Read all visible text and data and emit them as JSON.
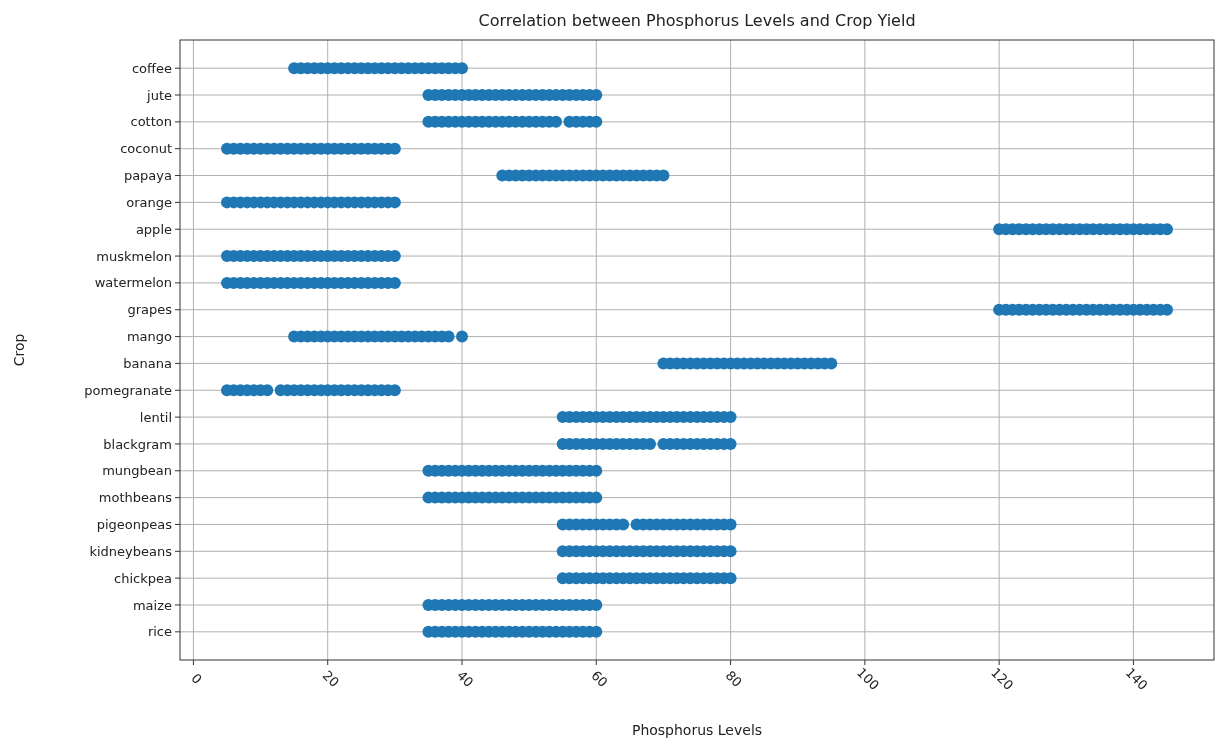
{
  "chart_data": {
    "type": "scatter",
    "orientation": "horizontal",
    "title": "Correlation between Phosphorus Levels and Crop Yield",
    "xlabel": "Phosphorus Levels",
    "ylabel": "Crop",
    "categories": [
      "coffee",
      "jute",
      "cotton",
      "coconut",
      "papaya",
      "orange",
      "apple",
      "muskmelon",
      "watermelon",
      "grapes",
      "mango",
      "banana",
      "pomegranate",
      "lentil",
      "blackgram",
      "mungbean",
      "mothbeans",
      "pigeonpeas",
      "kidneybeans",
      "chickpea",
      "maize",
      "rice"
    ],
    "xlim": [
      -2,
      152
    ],
    "xticks": [
      0,
      20,
      40,
      60,
      80,
      100,
      120,
      140
    ],
    "grid": true,
    "marker": "circle",
    "series": [
      {
        "color": "#1f77b4",
        "x": [
          "coffee",
          "coffee",
          "coffee",
          "coffee",
          "coffee",
          "coffee",
          "coffee",
          "coffee",
          "coffee",
          "coffee",
          "coffee",
          "coffee",
          "coffee",
          "coffee",
          "coffee",
          "coffee",
          "coffee",
          "coffee",
          "coffee",
          "coffee",
          "coffee",
          "coffee",
          "coffee",
          "coffee",
          "coffee",
          "coffee"
        ],
        "values": [
          15,
          16,
          17,
          18,
          19,
          20,
          21,
          22,
          23,
          24,
          25,
          26,
          27,
          28,
          29,
          30,
          31,
          32,
          33,
          34,
          35,
          36,
          37,
          38,
          39,
          40
        ]
      },
      {
        "color": "#1f77b4",
        "x": [
          "jute",
          "jute",
          "jute",
          "jute",
          "jute",
          "jute",
          "jute",
          "jute",
          "jute",
          "jute",
          "jute",
          "jute",
          "jute",
          "jute",
          "jute",
          "jute",
          "jute",
          "jute",
          "jute",
          "jute",
          "jute",
          "jute",
          "jute",
          "jute",
          "jute",
          "jute"
        ],
        "values": [
          35,
          36,
          37,
          38,
          39,
          40,
          41,
          42,
          43,
          44,
          45,
          46,
          47,
          48,
          49,
          50,
          51,
          52,
          53,
          54,
          55,
          56,
          57,
          58,
          59,
          60
        ]
      },
      {
        "color": "#1f77b4",
        "x": [
          "cotton",
          "cotton",
          "cotton",
          "cotton",
          "cotton",
          "cotton",
          "cotton",
          "cotton",
          "cotton",
          "cotton",
          "cotton",
          "cotton",
          "cotton",
          "cotton",
          "cotton",
          "cotton",
          "cotton",
          "cotton",
          "cotton",
          "cotton",
          "cotton",
          "cotton",
          "cotton",
          "cotton",
          "cotton"
        ],
        "values": [
          35,
          36,
          37,
          38,
          39,
          40,
          41,
          42,
          43,
          44,
          45,
          46,
          47,
          48,
          49,
          50,
          51,
          52,
          53,
          54,
          56,
          57,
          58,
          59,
          60
        ]
      },
      {
        "color": "#1f77b4",
        "x": [
          "coconut",
          "coconut",
          "coconut",
          "coconut",
          "coconut",
          "coconut",
          "coconut",
          "coconut",
          "coconut",
          "coconut",
          "coconut",
          "coconut",
          "coconut",
          "coconut",
          "coconut",
          "coconut",
          "coconut",
          "coconut",
          "coconut",
          "coconut",
          "coconut",
          "coconut",
          "coconut",
          "coconut",
          "coconut",
          "coconut"
        ],
        "values": [
          5,
          6,
          7,
          8,
          9,
          10,
          11,
          12,
          13,
          14,
          15,
          16,
          17,
          18,
          19,
          20,
          21,
          22,
          23,
          24,
          25,
          26,
          27,
          28,
          29,
          30
        ]
      },
      {
        "color": "#1f77b4",
        "x": [
          "papaya",
          "papaya",
          "papaya",
          "papaya",
          "papaya",
          "papaya",
          "papaya",
          "papaya",
          "papaya",
          "papaya",
          "papaya",
          "papaya",
          "papaya",
          "papaya",
          "papaya",
          "papaya",
          "papaya",
          "papaya",
          "papaya",
          "papaya",
          "papaya",
          "papaya",
          "papaya",
          "papaya",
          "papaya"
        ],
        "values": [
          46,
          47,
          48,
          49,
          50,
          51,
          52,
          53,
          54,
          55,
          56,
          57,
          58,
          59,
          60,
          61,
          62,
          63,
          64,
          65,
          66,
          67,
          68,
          69,
          70
        ]
      },
      {
        "color": "#1f77b4",
        "x": [
          "orange",
          "orange",
          "orange",
          "orange",
          "orange",
          "orange",
          "orange",
          "orange",
          "orange",
          "orange",
          "orange",
          "orange",
          "orange",
          "orange",
          "orange",
          "orange",
          "orange",
          "orange",
          "orange",
          "orange",
          "orange",
          "orange",
          "orange",
          "orange",
          "orange",
          "orange"
        ],
        "values": [
          5,
          6,
          7,
          8,
          9,
          10,
          11,
          12,
          13,
          14,
          15,
          16,
          17,
          18,
          19,
          20,
          21,
          22,
          23,
          24,
          25,
          26,
          27,
          28,
          29,
          30
        ]
      },
      {
        "color": "#1f77b4",
        "x": [
          "apple",
          "apple",
          "apple",
          "apple",
          "apple",
          "apple",
          "apple",
          "apple",
          "apple",
          "apple",
          "apple",
          "apple",
          "apple",
          "apple",
          "apple",
          "apple",
          "apple",
          "apple",
          "apple",
          "apple",
          "apple",
          "apple",
          "apple",
          "apple",
          "apple",
          "apple"
        ],
        "values": [
          120,
          121,
          122,
          123,
          124,
          125,
          126,
          127,
          128,
          129,
          130,
          131,
          132,
          133,
          134,
          135,
          136,
          137,
          138,
          139,
          140,
          141,
          142,
          143,
          144,
          145
        ]
      },
      {
        "color": "#1f77b4",
        "x": [
          "muskmelon",
          "muskmelon",
          "muskmelon",
          "muskmelon",
          "muskmelon",
          "muskmelon",
          "muskmelon",
          "muskmelon",
          "muskmelon",
          "muskmelon",
          "muskmelon",
          "muskmelon",
          "muskmelon",
          "muskmelon",
          "muskmelon",
          "muskmelon",
          "muskmelon",
          "muskmelon",
          "muskmelon",
          "muskmelon",
          "muskmelon",
          "muskmelon",
          "muskmelon",
          "muskmelon",
          "muskmelon",
          "muskmelon"
        ],
        "values": [
          5,
          6,
          7,
          8,
          9,
          10,
          11,
          12,
          13,
          14,
          15,
          16,
          17,
          18,
          19,
          20,
          21,
          22,
          23,
          24,
          25,
          26,
          27,
          28,
          29,
          30
        ]
      },
      {
        "color": "#1f77b4",
        "x": [
          "watermelon",
          "watermelon",
          "watermelon",
          "watermelon",
          "watermelon",
          "watermelon",
          "watermelon",
          "watermelon",
          "watermelon",
          "watermelon",
          "watermelon",
          "watermelon",
          "watermelon",
          "watermelon",
          "watermelon",
          "watermelon",
          "watermelon",
          "watermelon",
          "watermelon",
          "watermelon",
          "watermelon",
          "watermelon",
          "watermelon",
          "watermelon",
          "watermelon",
          "watermelon"
        ],
        "values": [
          5,
          6,
          7,
          8,
          9,
          10,
          11,
          12,
          13,
          14,
          15,
          16,
          17,
          18,
          19,
          20,
          21,
          22,
          23,
          24,
          25,
          26,
          27,
          28,
          29,
          30
        ]
      },
      {
        "color": "#1f77b4",
        "x": [
          "grapes",
          "grapes",
          "grapes",
          "grapes",
          "grapes",
          "grapes",
          "grapes",
          "grapes",
          "grapes",
          "grapes",
          "grapes",
          "grapes",
          "grapes",
          "grapes",
          "grapes",
          "grapes",
          "grapes",
          "grapes",
          "grapes",
          "grapes",
          "grapes",
          "grapes",
          "grapes",
          "grapes",
          "grapes",
          "grapes"
        ],
        "values": [
          120,
          121,
          122,
          123,
          124,
          125,
          126,
          127,
          128,
          129,
          130,
          131,
          132,
          133,
          134,
          135,
          136,
          137,
          138,
          139,
          140,
          141,
          142,
          143,
          144,
          145
        ]
      },
      {
        "color": "#1f77b4",
        "x": [
          "mango",
          "mango",
          "mango",
          "mango",
          "mango",
          "mango",
          "mango",
          "mango",
          "mango",
          "mango",
          "mango",
          "mango",
          "mango",
          "mango",
          "mango",
          "mango",
          "mango",
          "mango",
          "mango",
          "mango",
          "mango",
          "mango",
          "mango",
          "mango",
          "mango"
        ],
        "values": [
          15,
          16,
          17,
          18,
          19,
          20,
          21,
          22,
          23,
          24,
          25,
          26,
          27,
          28,
          29,
          30,
          31,
          32,
          33,
          34,
          35,
          36,
          37,
          38,
          40
        ]
      },
      {
        "color": "#1f77b4",
        "x": [
          "banana",
          "banana",
          "banana",
          "banana",
          "banana",
          "banana",
          "banana",
          "banana",
          "banana",
          "banana",
          "banana",
          "banana",
          "banana",
          "banana",
          "banana",
          "banana",
          "banana",
          "banana",
          "banana",
          "banana",
          "banana",
          "banana",
          "banana",
          "banana",
          "banana",
          "banana"
        ],
        "values": [
          70,
          71,
          72,
          73,
          74,
          75,
          76,
          77,
          78,
          79,
          80,
          81,
          82,
          83,
          84,
          85,
          86,
          87,
          88,
          89,
          90,
          91,
          92,
          93,
          94,
          95
        ]
      },
      {
        "color": "#1f77b4",
        "x": [
          "pomegranate",
          "pomegranate",
          "pomegranate",
          "pomegranate",
          "pomegranate",
          "pomegranate",
          "pomegranate",
          "pomegranate",
          "pomegranate",
          "pomegranate",
          "pomegranate",
          "pomegranate",
          "pomegranate",
          "pomegranate",
          "pomegranate",
          "pomegranate",
          "pomegranate",
          "pomegranate",
          "pomegranate",
          "pomegranate",
          "pomegranate",
          "pomegranate",
          "pomegranate",
          "pomegranate",
          "pomegranate"
        ],
        "values": [
          5,
          6,
          7,
          8,
          9,
          10,
          11,
          13,
          14,
          15,
          16,
          17,
          18,
          19,
          20,
          21,
          22,
          23,
          24,
          25,
          26,
          27,
          28,
          29,
          30
        ]
      },
      {
        "color": "#1f77b4",
        "x": [
          "lentil",
          "lentil",
          "lentil",
          "lentil",
          "lentil",
          "lentil",
          "lentil",
          "lentil",
          "lentil",
          "lentil",
          "lentil",
          "lentil",
          "lentil",
          "lentil",
          "lentil",
          "lentil",
          "lentil",
          "lentil",
          "lentil",
          "lentil",
          "lentil",
          "lentil",
          "lentil",
          "lentil",
          "lentil",
          "lentil"
        ],
        "values": [
          55,
          56,
          57,
          58,
          59,
          60,
          61,
          62,
          63,
          64,
          65,
          66,
          67,
          68,
          69,
          70,
          71,
          72,
          73,
          74,
          75,
          76,
          77,
          78,
          79,
          80
        ]
      },
      {
        "color": "#1f77b4",
        "x": [
          "blackgram",
          "blackgram",
          "blackgram",
          "blackgram",
          "blackgram",
          "blackgram",
          "blackgram",
          "blackgram",
          "blackgram",
          "blackgram",
          "blackgram",
          "blackgram",
          "blackgram",
          "blackgram",
          "blackgram",
          "blackgram",
          "blackgram",
          "blackgram",
          "blackgram",
          "blackgram",
          "blackgram",
          "blackgram",
          "blackgram",
          "blackgram",
          "blackgram"
        ],
        "values": [
          55,
          56,
          57,
          58,
          59,
          60,
          61,
          62,
          63,
          64,
          65,
          66,
          67,
          68,
          70,
          71,
          72,
          73,
          74,
          75,
          76,
          77,
          78,
          79,
          80
        ]
      },
      {
        "color": "#1f77b4",
        "x": [
          "mungbean",
          "mungbean",
          "mungbean",
          "mungbean",
          "mungbean",
          "mungbean",
          "mungbean",
          "mungbean",
          "mungbean",
          "mungbean",
          "mungbean",
          "mungbean",
          "mungbean",
          "mungbean",
          "mungbean",
          "mungbean",
          "mungbean",
          "mungbean",
          "mungbean",
          "mungbean",
          "mungbean",
          "mungbean",
          "mungbean",
          "mungbean",
          "mungbean",
          "mungbean"
        ],
        "values": [
          35,
          36,
          37,
          38,
          39,
          40,
          41,
          42,
          43,
          44,
          45,
          46,
          47,
          48,
          49,
          50,
          51,
          52,
          53,
          54,
          55,
          56,
          57,
          58,
          59,
          60
        ]
      },
      {
        "color": "#1f77b4",
        "x": [
          "mothbeans",
          "mothbeans",
          "mothbeans",
          "mothbeans",
          "mothbeans",
          "mothbeans",
          "mothbeans",
          "mothbeans",
          "mothbeans",
          "mothbeans",
          "mothbeans",
          "mothbeans",
          "mothbeans",
          "mothbeans",
          "mothbeans",
          "mothbeans",
          "mothbeans",
          "mothbeans",
          "mothbeans",
          "mothbeans",
          "mothbeans",
          "mothbeans",
          "mothbeans",
          "mothbeans",
          "mothbeans",
          "mothbeans"
        ],
        "values": [
          35,
          36,
          37,
          38,
          39,
          40,
          41,
          42,
          43,
          44,
          45,
          46,
          47,
          48,
          49,
          50,
          51,
          52,
          53,
          54,
          55,
          56,
          57,
          58,
          59,
          60
        ]
      },
      {
        "color": "#1f77b4",
        "x": [
          "pigeonpeas",
          "pigeonpeas",
          "pigeonpeas",
          "pigeonpeas",
          "pigeonpeas",
          "pigeonpeas",
          "pigeonpeas",
          "pigeonpeas",
          "pigeonpeas",
          "pigeonpeas",
          "pigeonpeas",
          "pigeonpeas",
          "pigeonpeas",
          "pigeonpeas",
          "pigeonpeas",
          "pigeonpeas",
          "pigeonpeas",
          "pigeonpeas",
          "pigeonpeas",
          "pigeonpeas",
          "pigeonpeas",
          "pigeonpeas",
          "pigeonpeas",
          "pigeonpeas",
          "pigeonpeas"
        ],
        "values": [
          55,
          56,
          57,
          58,
          59,
          60,
          61,
          62,
          63,
          64,
          66,
          67,
          68,
          69,
          70,
          71,
          72,
          73,
          74,
          75,
          76,
          77,
          78,
          79,
          80
        ]
      },
      {
        "color": "#1f77b4",
        "x": [
          "kidneybeans",
          "kidneybeans",
          "kidneybeans",
          "kidneybeans",
          "kidneybeans",
          "kidneybeans",
          "kidneybeans",
          "kidneybeans",
          "kidneybeans",
          "kidneybeans",
          "kidneybeans",
          "kidneybeans",
          "kidneybeans",
          "kidneybeans",
          "kidneybeans",
          "kidneybeans",
          "kidneybeans",
          "kidneybeans",
          "kidneybeans",
          "kidneybeans",
          "kidneybeans",
          "kidneybeans",
          "kidneybeans",
          "kidneybeans",
          "kidneybeans",
          "kidneybeans"
        ],
        "values": [
          55,
          56,
          57,
          58,
          59,
          60,
          61,
          62,
          63,
          64,
          65,
          66,
          67,
          68,
          69,
          70,
          71,
          72,
          73,
          74,
          75,
          76,
          77,
          78,
          79,
          80
        ]
      },
      {
        "color": "#1f77b4",
        "x": [
          "chickpea",
          "chickpea",
          "chickpea",
          "chickpea",
          "chickpea",
          "chickpea",
          "chickpea",
          "chickpea",
          "chickpea",
          "chickpea",
          "chickpea",
          "chickpea",
          "chickpea",
          "chickpea",
          "chickpea",
          "chickpea",
          "chickpea",
          "chickpea",
          "chickpea",
          "chickpea",
          "chickpea",
          "chickpea",
          "chickpea",
          "chickpea",
          "chickpea",
          "chickpea"
        ],
        "values": [
          55,
          56,
          57,
          58,
          59,
          60,
          61,
          62,
          63,
          64,
          65,
          66,
          67,
          68,
          69,
          70,
          71,
          72,
          73,
          74,
          75,
          76,
          77,
          78,
          79,
          80
        ]
      },
      {
        "color": "#1f77b4",
        "x": [
          "maize",
          "maize",
          "maize",
          "maize",
          "maize",
          "maize",
          "maize",
          "maize",
          "maize",
          "maize",
          "maize",
          "maize",
          "maize",
          "maize",
          "maize",
          "maize",
          "maize",
          "maize",
          "maize",
          "maize",
          "maize",
          "maize",
          "maize",
          "maize",
          "maize",
          "maize"
        ],
        "values": [
          35,
          36,
          37,
          38,
          39,
          40,
          41,
          42,
          43,
          44,
          45,
          46,
          47,
          48,
          49,
          50,
          51,
          52,
          53,
          54,
          55,
          56,
          57,
          58,
          59,
          60
        ]
      },
      {
        "color": "#1f77b4",
        "x": [
          "rice",
          "rice",
          "rice",
          "rice",
          "rice",
          "rice",
          "rice",
          "rice",
          "rice",
          "rice",
          "rice",
          "rice",
          "rice",
          "rice",
          "rice",
          "rice",
          "rice",
          "rice",
          "rice",
          "rice",
          "rice",
          "rice",
          "rice",
          "rice",
          "rice",
          "rice"
        ],
        "values": [
          35,
          36,
          37,
          38,
          39,
          40,
          41,
          42,
          43,
          44,
          45,
          46,
          47,
          48,
          49,
          50,
          51,
          52,
          53,
          54,
          55,
          56,
          57,
          58,
          59,
          60
        ]
      }
    ]
  }
}
